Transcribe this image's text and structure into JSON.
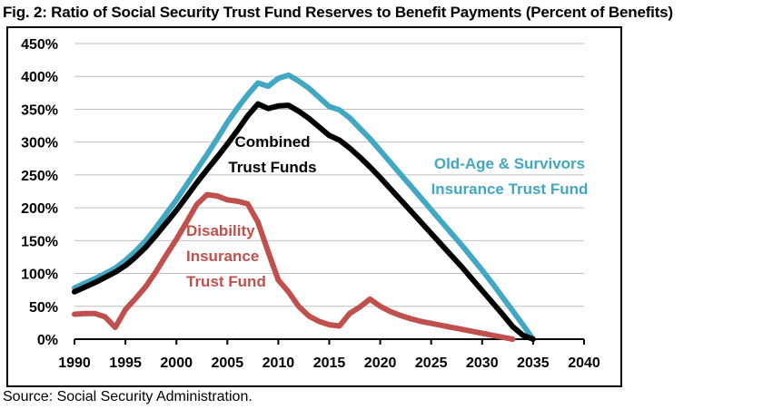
{
  "title": "Fig. 2: Ratio of Social Security Trust Fund Reserves to Benefit Payments (Percent of Benefits)",
  "source": "Source: Social Security Administration.",
  "chart_data": {
    "type": "line",
    "title": "Fig. 2: Ratio of Social Security Trust Fund Reserves to Benefit Payments (Percent of Benefits)",
    "xlabel": "",
    "ylabel": "",
    "x_range": [
      1990,
      2040
    ],
    "x_ticks": [
      1990,
      1995,
      2000,
      2005,
      2010,
      2015,
      2020,
      2025,
      2030,
      2035,
      2040
    ],
    "ylim": [
      0,
      450
    ],
    "y_tick_step": 50,
    "y_tick_suffix": "%",
    "grid": "horizontal",
    "legend": "inline-annotations",
    "colors": {
      "grid": "#BFBFBF",
      "axis": "#000000"
    },
    "series": [
      {
        "id": "oasi",
        "name": "Old-Age & Survivors Insurance Trust Fund",
        "color": "#41A7C2",
        "start_year": 1990,
        "values": [
          78,
          85,
          92,
          100,
          108,
          120,
          134,
          150,
          170,
          191,
          212,
          235,
          258,
          281,
          305,
          330,
          352,
          372,
          390,
          385,
          397,
          402,
          393,
          382,
          368,
          354,
          349,
          337,
          321,
          305,
          287,
          269,
          251,
          233,
          215,
          197,
          179,
          161,
          143,
          124,
          105,
          85,
          64,
          43,
          22,
          0
        ]
      },
      {
        "id": "combined",
        "name": "Combined Trust Funds",
        "color": "#000000",
        "start_year": 1990,
        "values": [
          72,
          79,
          86,
          94,
          102,
          112,
          125,
          140,
          158,
          177,
          196,
          217,
          238,
          258,
          277,
          297,
          318,
          340,
          358,
          351,
          355,
          356,
          347,
          336,
          323,
          310,
          303,
          291,
          277,
          262,
          246,
          229,
          212,
          195,
          178,
          161,
          144,
          127,
          110,
          92,
          74,
          56,
          38,
          19,
          6,
          0
        ]
      },
      {
        "id": "di",
        "name": "Disability Insurance Trust Fund",
        "color": "#C0504D",
        "start_year": 1990,
        "values": [
          38,
          39,
          39,
          34,
          18,
          45,
          62,
          80,
          103,
          128,
          152,
          178,
          205,
          220,
          218,
          212,
          210,
          206,
          178,
          133,
          90,
          72,
          50,
          35,
          27,
          22,
          20,
          39,
          49,
          61,
          50,
          42,
          36,
          31,
          27,
          24,
          21,
          18,
          15,
          12,
          9,
          6,
          3,
          0
        ]
      }
    ],
    "annotations": {
      "combined": {
        "lines": [
          "Combined",
          "Trust Funds"
        ],
        "color": "#000000"
      },
      "oasi": {
        "lines": [
          "Old-Age & Survivors",
          "Insurance Trust Fund"
        ],
        "color": "#41A7C2"
      },
      "di": {
        "lines": [
          "Disability",
          "Insurance",
          "Trust Fund"
        ],
        "color": "#C0504D"
      }
    }
  }
}
